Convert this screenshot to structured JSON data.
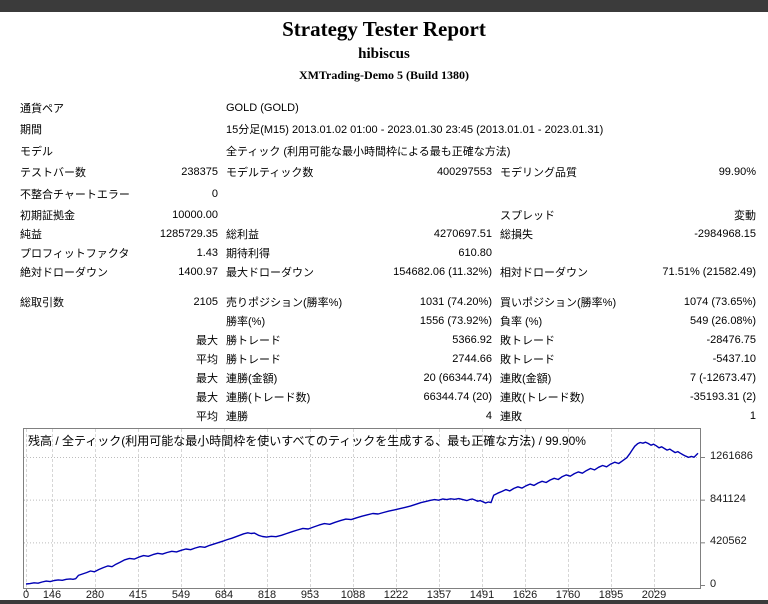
{
  "header": {
    "report_title": "Strategy Tester Report",
    "ea_name": "hibiscus",
    "server": "XMTrading-Demo 5 (Build 1380)"
  },
  "colors": {
    "accent_line": "#0000b4",
    "top_bar": "#3b3b3b",
    "grid_vertical": "#d6d6d6",
    "grid_horizontal": "#bcbcbc",
    "frame": "#808080"
  },
  "tables": {
    "sections": [
      {
        "rows": [
          [
            "通貨ペア",
            "",
            "GOLD (GOLD)",
            "",
            "",
            ""
          ],
          [
            "期間",
            "",
            "15分足(M15) 2013.01.02 01:00 - 2023.01.30 23:45 (2013.01.01 - 2023.01.31)",
            "",
            "",
            ""
          ],
          [
            "モデル",
            "",
            "全ティック (利用可能な最小時間枠による最も正確な方法)",
            "",
            "",
            ""
          ],
          [
            "テストバー数",
            "238375",
            "モデルティック数",
            "400297553",
            "モデリング品質",
            "99.90%"
          ],
          [
            "不整合チャートエラー",
            "0",
            "",
            "",
            "",
            ""
          ]
        ]
      },
      {
        "rows": [
          [
            "初期証拠金",
            "10000.00",
            "",
            "",
            "スプレッド",
            "変動"
          ],
          [
            "純益",
            "1285729.35",
            "総利益",
            "4270697.51",
            "総損失",
            "-2984968.15"
          ],
          [
            "プロフィットファクタ",
            "1.43",
            "期待利得",
            "610.80",
            "",
            ""
          ],
          [
            "絶対ドローダウン",
            "1400.97",
            "最大ドローダウン",
            "154682.06 (11.32%)",
            "相対ドローダウン",
            "71.51% (21582.49)"
          ]
        ]
      },
      {
        "rows": [
          [
            "総取引数",
            "2105",
            "売りポジション(勝率%)",
            "1031 (74.20%)",
            "買いポジション(勝率%)",
            "1074 (73.65%)"
          ],
          [
            "",
            "",
            "勝率(%)",
            "1556 (73.92%)",
            "負率 (%)",
            "549 (26.08%)"
          ],
          [
            "",
            "最大",
            "勝トレード",
            "5366.92",
            "敗トレード",
            "-28476.75"
          ],
          [
            "",
            "平均",
            "勝トレード",
            "2744.66",
            "敗トレード",
            "-5437.10"
          ],
          [
            "",
            "最大",
            "連勝(金額)",
            "20 (66344.74)",
            "連敗(金額)",
            "7 (-12673.47)"
          ],
          [
            "",
            "最大",
            "連勝(トレード数)",
            "66344.74 (20)",
            "連敗(トレード数)",
            "-35193.31 (2)"
          ],
          [
            "",
            "平均",
            "連勝",
            "4",
            "連敗",
            "1"
          ]
        ]
      }
    ]
  },
  "chart_data": {
    "type": "line",
    "title": "残高 / 全ティック(利用可能な最小時間枠を使いすべてのティックを生成する、最も正確な方法) / 99.90%",
    "series_name": "残高",
    "x_ticks": [
      0,
      146,
      280,
      415,
      549,
      684,
      818,
      953,
      1088,
      1222,
      1357,
      1491,
      1626,
      1760,
      1895,
      2029
    ],
    "y_ticks": [
      0,
      420562,
      841124,
      1261686
    ],
    "xlim": [
      0,
      2105
    ],
    "ylim": [
      0,
      1550000
    ],
    "grid": true,
    "legend_position": "none",
    "note": "curve points are [fraction_across_plot, balance_in_thousands]",
    "curve": [
      [
        0,
        10
      ],
      [
        0.006,
        14
      ],
      [
        0.012,
        22
      ],
      [
        0.018,
        18
      ],
      [
        0.024,
        30
      ],
      [
        0.03,
        38
      ],
      [
        0.036,
        34
      ],
      [
        0.042,
        44
      ],
      [
        0.048,
        50
      ],
      [
        0.054,
        46
      ],
      [
        0.06,
        56
      ],
      [
        0.066,
        60
      ],
      [
        0.07,
        56
      ],
      [
        0.074,
        62
      ],
      [
        0.078,
        95
      ],
      [
        0.084,
        108
      ],
      [
        0.09,
        122
      ],
      [
        0.096,
        138
      ],
      [
        0.102,
        130
      ],
      [
        0.108,
        152
      ],
      [
        0.115,
        172
      ],
      [
        0.122,
        188
      ],
      [
        0.128,
        180
      ],
      [
        0.134,
        205
      ],
      [
        0.14,
        225
      ],
      [
        0.147,
        248
      ],
      [
        0.154,
        262
      ],
      [
        0.161,
        255
      ],
      [
        0.168,
        275
      ],
      [
        0.175,
        290
      ],
      [
        0.182,
        283
      ],
      [
        0.189,
        300
      ],
      [
        0.196,
        312
      ],
      [
        0.203,
        305
      ],
      [
        0.21,
        320
      ],
      [
        0.217,
        332
      ],
      [
        0.224,
        326
      ],
      [
        0.231,
        342
      ],
      [
        0.238,
        355
      ],
      [
        0.245,
        348
      ],
      [
        0.252,
        365
      ],
      [
        0.259,
        378
      ],
      [
        0.266,
        372
      ],
      [
        0.273,
        390
      ],
      [
        0.28,
        405
      ],
      [
        0.287,
        420
      ],
      [
        0.294,
        435
      ],
      [
        0.3,
        448
      ],
      [
        0.306,
        460
      ],
      [
        0.312,
        475
      ],
      [
        0.318,
        490
      ],
      [
        0.324,
        505
      ],
      [
        0.33,
        515
      ],
      [
        0.335,
        508
      ],
      [
        0.34,
        512
      ],
      [
        0.346,
        490
      ],
      [
        0.352,
        478
      ],
      [
        0.358,
        472
      ],
      [
        0.365,
        480
      ],
      [
        0.372,
        476
      ],
      [
        0.38,
        490
      ],
      [
        0.388,
        508
      ],
      [
        0.396,
        525
      ],
      [
        0.404,
        542
      ],
      [
        0.412,
        558
      ],
      [
        0.42,
        552
      ],
      [
        0.428,
        572
      ],
      [
        0.436,
        590
      ],
      [
        0.444,
        605
      ],
      [
        0.452,
        598
      ],
      [
        0.46,
        618
      ],
      [
        0.468,
        635
      ],
      [
        0.476,
        650
      ],
      [
        0.484,
        645
      ],
      [
        0.492,
        662
      ],
      [
        0.5,
        678
      ],
      [
        0.508,
        692
      ],
      [
        0.516,
        705
      ],
      [
        0.524,
        700
      ],
      [
        0.532,
        715
      ],
      [
        0.54,
        728
      ],
      [
        0.548,
        740
      ],
      [
        0.556,
        752
      ],
      [
        0.564,
        765
      ],
      [
        0.572,
        778
      ],
      [
        0.58,
        795
      ],
      [
        0.588,
        812
      ],
      [
        0.596,
        825
      ],
      [
        0.602,
        835
      ],
      [
        0.608,
        842
      ],
      [
        0.614,
        836
      ],
      [
        0.62,
        848
      ],
      [
        0.626,
        842
      ],
      [
        0.632,
        850
      ],
      [
        0.638,
        845
      ],
      [
        0.644,
        852
      ],
      [
        0.65,
        842
      ],
      [
        0.656,
        832
      ],
      [
        0.66,
        842
      ],
      [
        0.664,
        848
      ],
      [
        0.668,
        838
      ],
      [
        0.672,
        826
      ],
      [
        0.676,
        832
      ],
      [
        0.68,
        820
      ],
      [
        0.684,
        808
      ],
      [
        0.688,
        818
      ],
      [
        0.692,
        812
      ],
      [
        0.696,
        885
      ],
      [
        0.702,
        905
      ],
      [
        0.708,
        922
      ],
      [
        0.714,
        940
      ],
      [
        0.72,
        928
      ],
      [
        0.726,
        952
      ],
      [
        0.732,
        968
      ],
      [
        0.738,
        955
      ],
      [
        0.744,
        978
      ],
      [
        0.75,
        995
      ],
      [
        0.756,
        982
      ],
      [
        0.762,
        1005
      ],
      [
        0.768,
        1022
      ],
      [
        0.774,
        1010
      ],
      [
        0.78,
        1035
      ],
      [
        0.786,
        1052
      ],
      [
        0.792,
        1040
      ],
      [
        0.798,
        1068
      ],
      [
        0.804,
        1085
      ],
      [
        0.81,
        1072
      ],
      [
        0.816,
        1098
      ],
      [
        0.822,
        1115
      ],
      [
        0.828,
        1102
      ],
      [
        0.834,
        1128
      ],
      [
        0.84,
        1148
      ],
      [
        0.846,
        1135
      ],
      [
        0.852,
        1160
      ],
      [
        0.858,
        1178
      ],
      [
        0.864,
        1165
      ],
      [
        0.87,
        1192
      ],
      [
        0.876,
        1210
      ],
      [
        0.882,
        1198
      ],
      [
        0.888,
        1225
      ],
      [
        0.894,
        1255
      ],
      [
        0.898,
        1290
      ],
      [
        0.902,
        1330
      ],
      [
        0.906,
        1368
      ],
      [
        0.91,
        1392
      ],
      [
        0.914,
        1405
      ],
      [
        0.918,
        1398
      ],
      [
        0.922,
        1408
      ],
      [
        0.926,
        1395
      ],
      [
        0.93,
        1378
      ],
      [
        0.934,
        1388
      ],
      [
        0.938,
        1372
      ],
      [
        0.942,
        1352
      ],
      [
        0.946,
        1362
      ],
      [
        0.95,
        1345
      ],
      [
        0.954,
        1330
      ],
      [
        0.958,
        1340
      ],
      [
        0.962,
        1322
      ],
      [
        0.966,
        1305
      ],
      [
        0.97,
        1315
      ],
      [
        0.974,
        1298
      ],
      [
        0.978,
        1282
      ],
      [
        0.982,
        1270
      ],
      [
        0.986,
        1258
      ],
      [
        0.99,
        1268
      ],
      [
        0.994,
        1260
      ],
      [
        1,
        1298
      ]
    ]
  }
}
